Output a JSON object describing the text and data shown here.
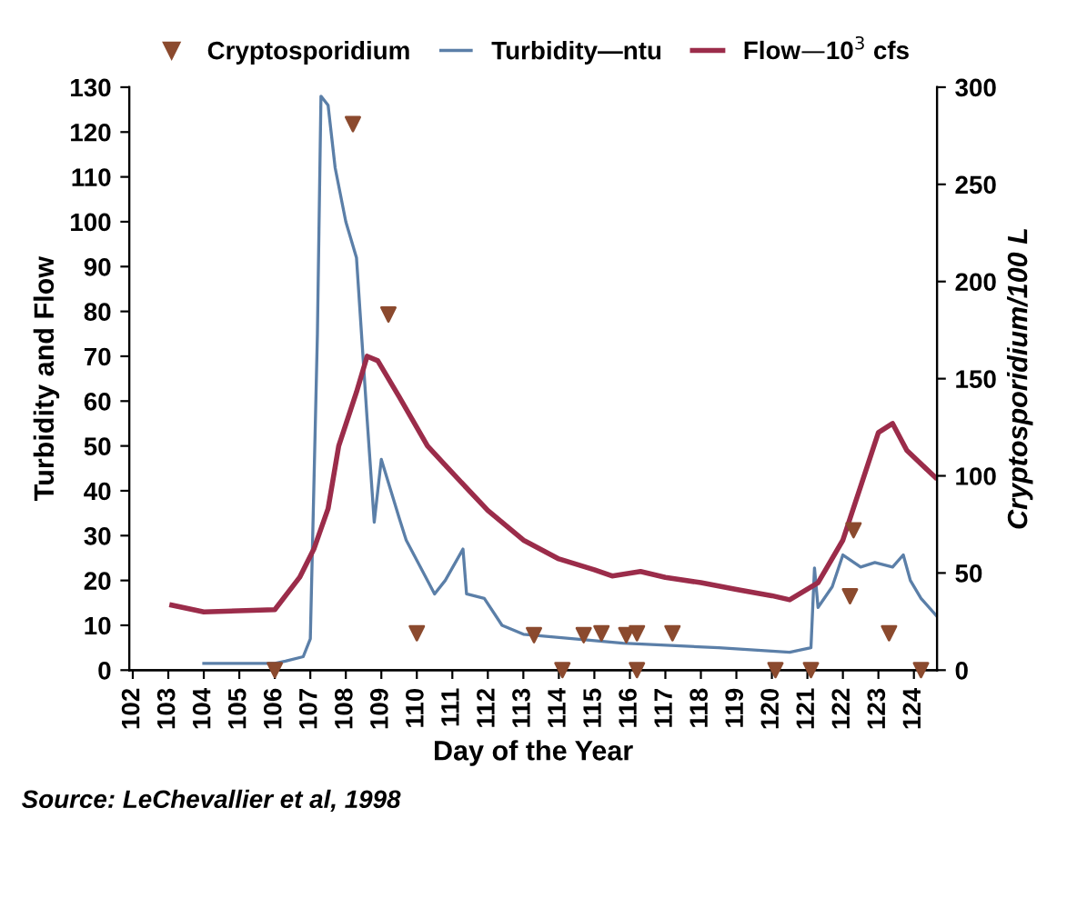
{
  "chart_data": {
    "type": "line",
    "xlabel": "Day of the Year",
    "ylabel": "Turbidity and Flow",
    "y2label": "Cryptosporidium/100 L",
    "annotations": [
      "Source: LeChevallier et al, 1998"
    ],
    "xlim": [
      101.9,
      124.65
    ],
    "xticks": [
      102,
      103,
      104,
      105,
      106,
      107,
      108,
      109,
      110,
      111,
      112,
      113,
      114,
      115,
      116,
      117,
      118,
      119,
      120,
      121,
      122,
      123,
      124
    ],
    "ylim": [
      0,
      130
    ],
    "yticks": [
      0,
      10,
      20,
      30,
      40,
      50,
      60,
      70,
      80,
      90,
      100,
      110,
      120,
      130
    ],
    "y2lim": [
      0,
      300
    ],
    "y2ticks": [
      0,
      50,
      100,
      150,
      200,
      250,
      300
    ],
    "grid": false,
    "legend": "top",
    "series": [
      {
        "name": "Cryptosporidium",
        "type": "scatter",
        "axis": "y2",
        "marker": "triangle",
        "color": "#8b4a2e",
        "x": [
          106.0,
          108.2,
          109.2,
          110.0,
          113.3,
          114.1,
          114.7,
          115.2,
          115.9,
          116.2,
          116.2,
          117.2,
          120.1,
          121.1,
          122.2,
          122.3,
          123.3,
          124.2
        ],
        "values": [
          0,
          281,
          183,
          19,
          18,
          0,
          18,
          19,
          18,
          19,
          0,
          19,
          0,
          0,
          38,
          72,
          19,
          0
        ]
      },
      {
        "name": "Turbidity—ntu",
        "type": "line",
        "color": "#5b7fa8",
        "line_style": "solid",
        "x": [
          104,
          106,
          106.3,
          106.8,
          107,
          107.2,
          107.3,
          107.5,
          107.7,
          108,
          108.3,
          108.6,
          108.8,
          109.0,
          109.5,
          109.7,
          110.5,
          110.8,
          111.3,
          111.4,
          111.9,
          112.4,
          113.0,
          115.8,
          118.5,
          120.5,
          121.1,
          121.2,
          121.3,
          121.7,
          122.0,
          122.5,
          122.9,
          123.4,
          123.7,
          123.9,
          124.2,
          124.65
        ],
        "values": [
          1.5,
          1.5,
          2,
          3,
          7,
          75,
          128,
          126,
          112,
          100,
          92,
          56,
          33,
          47,
          34,
          29,
          17,
          20,
          27,
          17,
          16,
          10,
          8,
          6,
          5,
          4,
          5,
          22.8,
          14,
          18.6,
          25.7,
          23,
          24,
          23,
          25.7,
          20,
          16,
          12
        ]
      },
      {
        "name": "Flow—10$^{3}$ cfs",
        "color": "#9b2c4a",
        "line_style": "solid",
        "x": [
          103.1,
          104,
          106,
          106.7,
          107.1,
          107.5,
          107.8,
          108.3,
          108.6,
          108.9,
          109.5,
          110.3,
          111,
          112,
          113,
          114,
          115,
          115.5,
          116.3,
          117,
          118,
          119,
          120,
          120.5,
          121.3,
          122,
          122.5,
          123,
          123.4,
          123.8,
          124.6
        ],
        "values": [
          14.5,
          13,
          13.5,
          20.7,
          27,
          36,
          50,
          62,
          70,
          69,
          61,
          50,
          44,
          35.6,
          29,
          24.8,
          22.4,
          21,
          22,
          20.7,
          19.5,
          18,
          16.6,
          15.7,
          19.5,
          29,
          41,
          53,
          55,
          49,
          43
        ]
      }
    ]
  }
}
